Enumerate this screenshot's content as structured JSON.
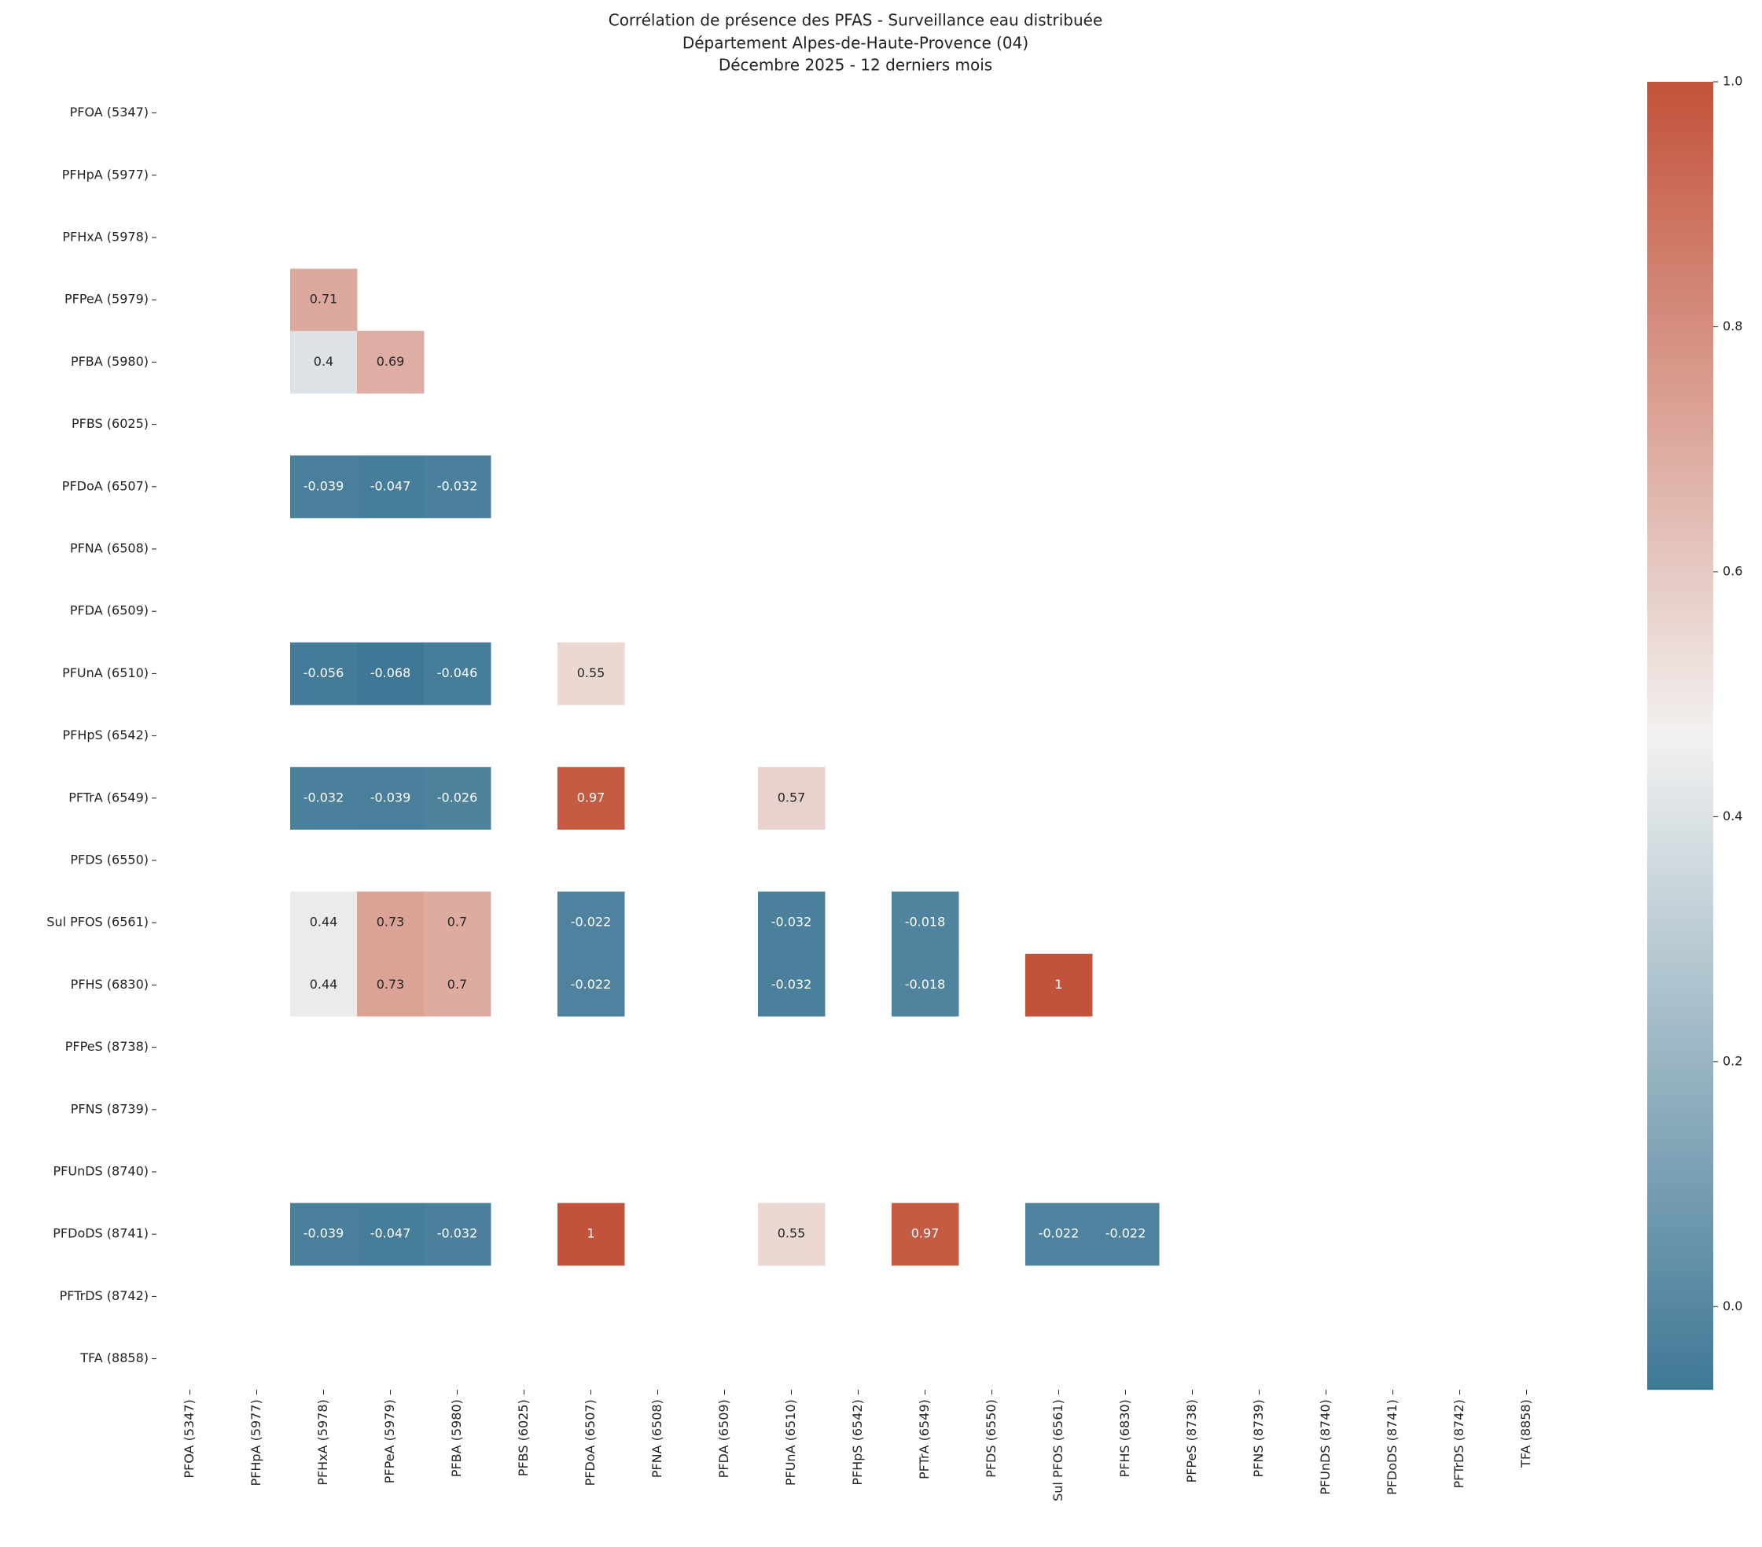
{
  "chart_data": {
    "type": "heatmap",
    "title": [
      "Corrélation de présence des PFAS - Surveillance eau distribuée",
      "Département Alpes-de-Haute-Provence (04)",
      "Décembre 2025 - 12 derniers mois"
    ],
    "x": [
      "PFOA (5347)",
      "PFHpA (5977)",
      "PFHxA (5978)",
      "PFPeA (5979)",
      "PFBA (5980)",
      "PFBS (6025)",
      "PFDoA (6507)",
      "PFNA (6508)",
      "PFDA (6509)",
      "PFUnA (6510)",
      "PFHpS (6542)",
      "PFTrA (6549)",
      "PFDS (6550)",
      "Sul PFOS (6561)",
      "PFHS (6830)",
      "PFPeS (8738)",
      "PFNS (8739)",
      "PFUnDS (8740)",
      "PFDoDS (8741)",
      "PFTrDS (8742)",
      "TFA (8858)"
    ],
    "y": [
      "PFOA (5347)",
      "PFHpA (5977)",
      "PFHxA (5978)",
      "PFPeA (5979)",
      "PFBA (5980)",
      "PFBS (6025)",
      "PFDoA (6507)",
      "PFNA (6508)",
      "PFDA (6509)",
      "PFUnA (6510)",
      "PFHpS (6542)",
      "PFTrA (6549)",
      "PFDS (6550)",
      "Sul PFOS (6561)",
      "PFHS (6830)",
      "PFPeS (8738)",
      "PFNS (8739)",
      "PFUnDS (8740)",
      "PFDoDS (8741)",
      "PFTrDS (8742)",
      "TFA (8858)"
    ],
    "values": [
      [
        null,
        null,
        null,
        null,
        null,
        null,
        null,
        null,
        null,
        null,
        null,
        null,
        null,
        null,
        null,
        null,
        null,
        null,
        null,
        null,
        null
      ],
      [
        null,
        null,
        null,
        null,
        null,
        null,
        null,
        null,
        null,
        null,
        null,
        null,
        null,
        null,
        null,
        null,
        null,
        null,
        null,
        null,
        null
      ],
      [
        null,
        null,
        null,
        null,
        null,
        null,
        null,
        null,
        null,
        null,
        null,
        null,
        null,
        null,
        null,
        null,
        null,
        null,
        null,
        null,
        null
      ],
      [
        null,
        null,
        0.71,
        null,
        null,
        null,
        null,
        null,
        null,
        null,
        null,
        null,
        null,
        null,
        null,
        null,
        null,
        null,
        null,
        null,
        null
      ],
      [
        null,
        null,
        0.4,
        0.69,
        null,
        null,
        null,
        null,
        null,
        null,
        null,
        null,
        null,
        null,
        null,
        null,
        null,
        null,
        null,
        null,
        null
      ],
      [
        null,
        null,
        null,
        null,
        null,
        null,
        null,
        null,
        null,
        null,
        null,
        null,
        null,
        null,
        null,
        null,
        null,
        null,
        null,
        null,
        null
      ],
      [
        null,
        null,
        -0.039,
        -0.047,
        -0.032,
        null,
        null,
        null,
        null,
        null,
        null,
        null,
        null,
        null,
        null,
        null,
        null,
        null,
        null,
        null,
        null
      ],
      [
        null,
        null,
        null,
        null,
        null,
        null,
        null,
        null,
        null,
        null,
        null,
        null,
        null,
        null,
        null,
        null,
        null,
        null,
        null,
        null,
        null
      ],
      [
        null,
        null,
        null,
        null,
        null,
        null,
        null,
        null,
        null,
        null,
        null,
        null,
        null,
        null,
        null,
        null,
        null,
        null,
        null,
        null,
        null
      ],
      [
        null,
        null,
        -0.056,
        -0.068,
        -0.046,
        null,
        0.55,
        null,
        null,
        null,
        null,
        null,
        null,
        null,
        null,
        null,
        null,
        null,
        null,
        null,
        null
      ],
      [
        null,
        null,
        null,
        null,
        null,
        null,
        null,
        null,
        null,
        null,
        null,
        null,
        null,
        null,
        null,
        null,
        null,
        null,
        null,
        null,
        null
      ],
      [
        null,
        null,
        -0.032,
        -0.039,
        -0.026,
        null,
        0.97,
        null,
        null,
        0.57,
        null,
        null,
        null,
        null,
        null,
        null,
        null,
        null,
        null,
        null,
        null
      ],
      [
        null,
        null,
        null,
        null,
        null,
        null,
        null,
        null,
        null,
        null,
        null,
        null,
        null,
        null,
        null,
        null,
        null,
        null,
        null,
        null,
        null
      ],
      [
        null,
        null,
        0.44,
        0.73,
        0.7,
        null,
        -0.022,
        null,
        null,
        -0.032,
        null,
        -0.018,
        null,
        null,
        null,
        null,
        null,
        null,
        null,
        null,
        null
      ],
      [
        null,
        null,
        0.44,
        0.73,
        0.7,
        null,
        -0.022,
        null,
        null,
        -0.032,
        null,
        -0.018,
        null,
        1,
        null,
        null,
        null,
        null,
        null,
        null,
        null
      ],
      [
        null,
        null,
        null,
        null,
        null,
        null,
        null,
        null,
        null,
        null,
        null,
        null,
        null,
        null,
        null,
        null,
        null,
        null,
        null,
        null,
        null
      ],
      [
        null,
        null,
        null,
        null,
        null,
        null,
        null,
        null,
        null,
        null,
        null,
        null,
        null,
        null,
        null,
        null,
        null,
        null,
        null,
        null,
        null
      ],
      [
        null,
        null,
        null,
        null,
        null,
        null,
        null,
        null,
        null,
        null,
        null,
        null,
        null,
        null,
        null,
        null,
        null,
        null,
        null,
        null,
        null
      ],
      [
        null,
        null,
        -0.039,
        -0.047,
        -0.032,
        null,
        1,
        null,
        null,
        0.55,
        null,
        0.97,
        null,
        -0.022,
        -0.022,
        null,
        null,
        null,
        null,
        null,
        null
      ],
      [
        null,
        null,
        null,
        null,
        null,
        null,
        null,
        null,
        null,
        null,
        null,
        null,
        null,
        null,
        null,
        null,
        null,
        null,
        null,
        null,
        null
      ],
      [
        null,
        null,
        null,
        null,
        null,
        null,
        null,
        null,
        null,
        null,
        null,
        null,
        null,
        null,
        null,
        null,
        null,
        null,
        null,
        null,
        null
      ]
    ],
    "colormap": [
      "#3f7896",
      "#f2f1f0",
      "#c3523a"
    ],
    "vlim": [
      -0.068,
      1
    ],
    "colorbar_ticks": [
      {
        "value": 0,
        "label": "0.0"
      },
      {
        "value": 0.2,
        "label": "0.2"
      },
      {
        "value": 0.4,
        "label": "0.4"
      },
      {
        "value": 0.6,
        "label": "0.6"
      },
      {
        "value": 0.8,
        "label": "0.8"
      },
      {
        "value": 1,
        "label": "1.0"
      }
    ]
  }
}
